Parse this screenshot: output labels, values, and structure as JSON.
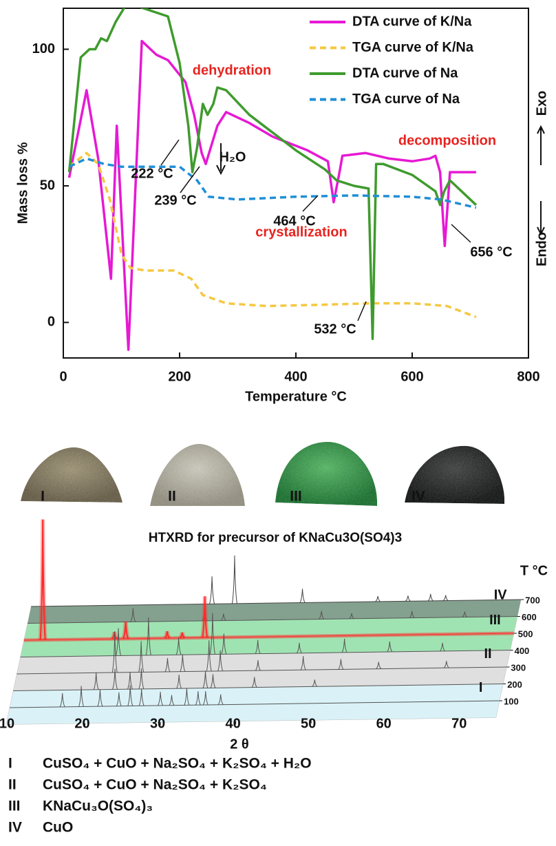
{
  "chart_data": [
    {
      "type": "line",
      "xlabel": "Temperature °C",
      "ylabel": "Mass loss %",
      "xlim": [
        0,
        800
      ],
      "ylim": [
        -13,
        115
      ],
      "xticks": [
        0,
        200,
        400,
        600,
        800
      ],
      "yticks": [
        0,
        50,
        100
      ],
      "legend": "upper right",
      "series": [
        {
          "name": "DTA curve of K/Na",
          "color": "#e619d4",
          "dash": false,
          "x": [
            10,
            40,
            60,
            82,
            92,
            112,
            135,
            160,
            180,
            210,
            225,
            238,
            245,
            265,
            280,
            320,
            360,
            420,
            455,
            465,
            475,
            480,
            520,
            560,
            600,
            630,
            640,
            648,
            656,
            665,
            710
          ],
          "values": [
            53,
            85,
            60,
            16,
            72,
            -10,
            103,
            98,
            96,
            88,
            76,
            62,
            58,
            72,
            77,
            73,
            68,
            63,
            59,
            44,
            55,
            61,
            62,
            60,
            59,
            60,
            61,
            55,
            28,
            55,
            55
          ]
        },
        {
          "name": "TGA curve of K/Na",
          "color": "#f5c842",
          "dash": true,
          "x": [
            10,
            40,
            60,
            80,
            100,
            115,
            140,
            190,
            220,
            240,
            280,
            350,
            450,
            530,
            600,
            660,
            710
          ],
          "values": [
            57,
            62,
            58,
            45,
            25,
            20,
            19,
            19,
            16,
            10,
            7,
            6,
            6.5,
            7,
            7,
            6,
            2
          ]
        },
        {
          "name": "DTA curve of Na",
          "color": "#3f9b2e",
          "dash": false,
          "x": [
            10,
            30,
            45,
            55,
            65,
            75,
            90,
            110,
            180,
            200,
            215,
            222,
            230,
            240,
            248,
            258,
            265,
            280,
            320,
            400,
            450,
            470,
            500,
            525,
            532,
            538,
            550,
            600,
            640,
            648,
            655,
            665,
            710
          ],
          "values": [
            55,
            97,
            100,
            100,
            104,
            103,
            110,
            117,
            112,
            95,
            72,
            55,
            64,
            80,
            76,
            80,
            86,
            85,
            76,
            63,
            56,
            52,
            50,
            49,
            -6,
            58,
            58,
            54,
            48,
            43,
            48,
            52,
            43
          ]
        },
        {
          "name": "TGA curve of Na",
          "color": "#1f8fd6",
          "dash": true,
          "x": [
            10,
            40,
            70,
            100,
            200,
            230,
            250,
            300,
            400,
            500,
            600,
            650,
            710
          ],
          "values": [
            57,
            60,
            58,
            57,
            57,
            52,
            46,
            45,
            46,
            46.5,
            46,
            45,
            42
          ]
        }
      ],
      "annotations": [
        {
          "text": "dehydration",
          "color": "#e8231f"
        },
        {
          "text": "decomposition",
          "color": "#e8231f"
        },
        {
          "text": "crystallization",
          "color": "#e8231f"
        },
        {
          "text": "222 °C",
          "color": "#111111"
        },
        {
          "text": "239 °C",
          "color": "#111111"
        },
        {
          "text": "464 °C",
          "color": "#111111"
        },
        {
          "text": "532 °C",
          "color": "#111111"
        },
        {
          "text": "656 °C",
          "color": "#111111"
        },
        {
          "text": "H₂O",
          "color": "#111111"
        }
      ],
      "side_labels": [
        "Exo",
        "Endo"
      ]
    },
    {
      "type": "waterfall",
      "title": "HTXRD for precursor of KNaCu3O(SO4)3",
      "xlabel": "2 θ",
      "zlabel": "T °C",
      "xlim": [
        10,
        75
      ],
      "xticks": [
        10,
        20,
        30,
        40,
        50,
        60,
        70
      ],
      "zticks": [
        100,
        200,
        300,
        400,
        500,
        600,
        700
      ],
      "regions": [
        {
          "label": "I",
          "color": "#d3f0f6",
          "patterns": [
            {
              "color": "#555555",
              "x": [
                17,
                19.5,
                22,
                24.5,
                26,
                27.5,
                30,
                31.5,
                33.5,
                35,
                36,
                38
              ],
              "values": [
                20,
                30,
                25,
                20,
                30,
                25,
                20,
                15,
                25,
                20,
                20,
                15
              ]
            },
            {
              "color": "#555555",
              "x": [
                21,
                23.5,
                25.5,
                27,
                32,
                35.5,
                36.5,
                42,
                50
              ],
              "values": [
                25,
                30,
                25,
                30,
                20,
                25,
                20,
                15,
                10
              ]
            }
          ]
        },
        {
          "label": "II",
          "color": "#d9d9d9",
          "patterns": [
            {
              "color": "#555555",
              "x": [
                23,
                26.5,
                30,
                32,
                35.5,
                37,
                42,
                48,
                53,
                58,
                67
              ],
              "values": [
                60,
                45,
                20,
                25,
                45,
                30,
                15,
                20,
                15,
                10,
                10
              ]
            },
            {
              "color": "#555555",
              "x": [
                23,
                27,
                31,
                35.5,
                37,
                41.5,
                47,
                53,
                59,
                66
              ],
              "values": [
                40,
                55,
                25,
                60,
                30,
                20,
                15,
                20,
                15,
                12
              ]
            }
          ]
        },
        {
          "label": "III",
          "color": "#8fdea4",
          "patterns": [
            {
              "color": "#ff2a2a",
              "x": [
                12.5,
                22,
                23.5,
                29,
                31,
                34
              ],
              "values": [
                175,
                10,
                25,
                10,
                8,
                60
              ]
            },
            {
              "color": "#555555",
              "x": [
                24,
                33.5,
                36,
                49,
                53,
                61,
                68
              ],
              "values": [
                20,
                15,
                10,
                12,
                8,
                10,
                8
              ]
            }
          ]
        },
        {
          "label": "IV",
          "color": "#6f8f7a",
          "patterns": [
            {
              "color": "#444444",
              "x": [
                34,
                37,
                46,
                56,
                60,
                63,
                65
              ],
              "values": [
                40,
                70,
                20,
                8,
                8,
                10,
                8
              ]
            }
          ]
        }
      ]
    }
  ],
  "photos": {
    "labels": [
      "I",
      "II",
      "III",
      "IV"
    ]
  },
  "phases": [
    {
      "label": "I",
      "text": "CuSO₄ + CuO + Na₂SO₄ + K₂SO₄ + H₂O"
    },
    {
      "label": "II",
      "text": "CuSO₄ + CuO + Na₂SO₄ + K₂SO₄"
    },
    {
      "label": "III",
      "text": "KNaCu₃O(SO₄)₃"
    },
    {
      "label": "IV",
      "text": "CuO"
    }
  ]
}
